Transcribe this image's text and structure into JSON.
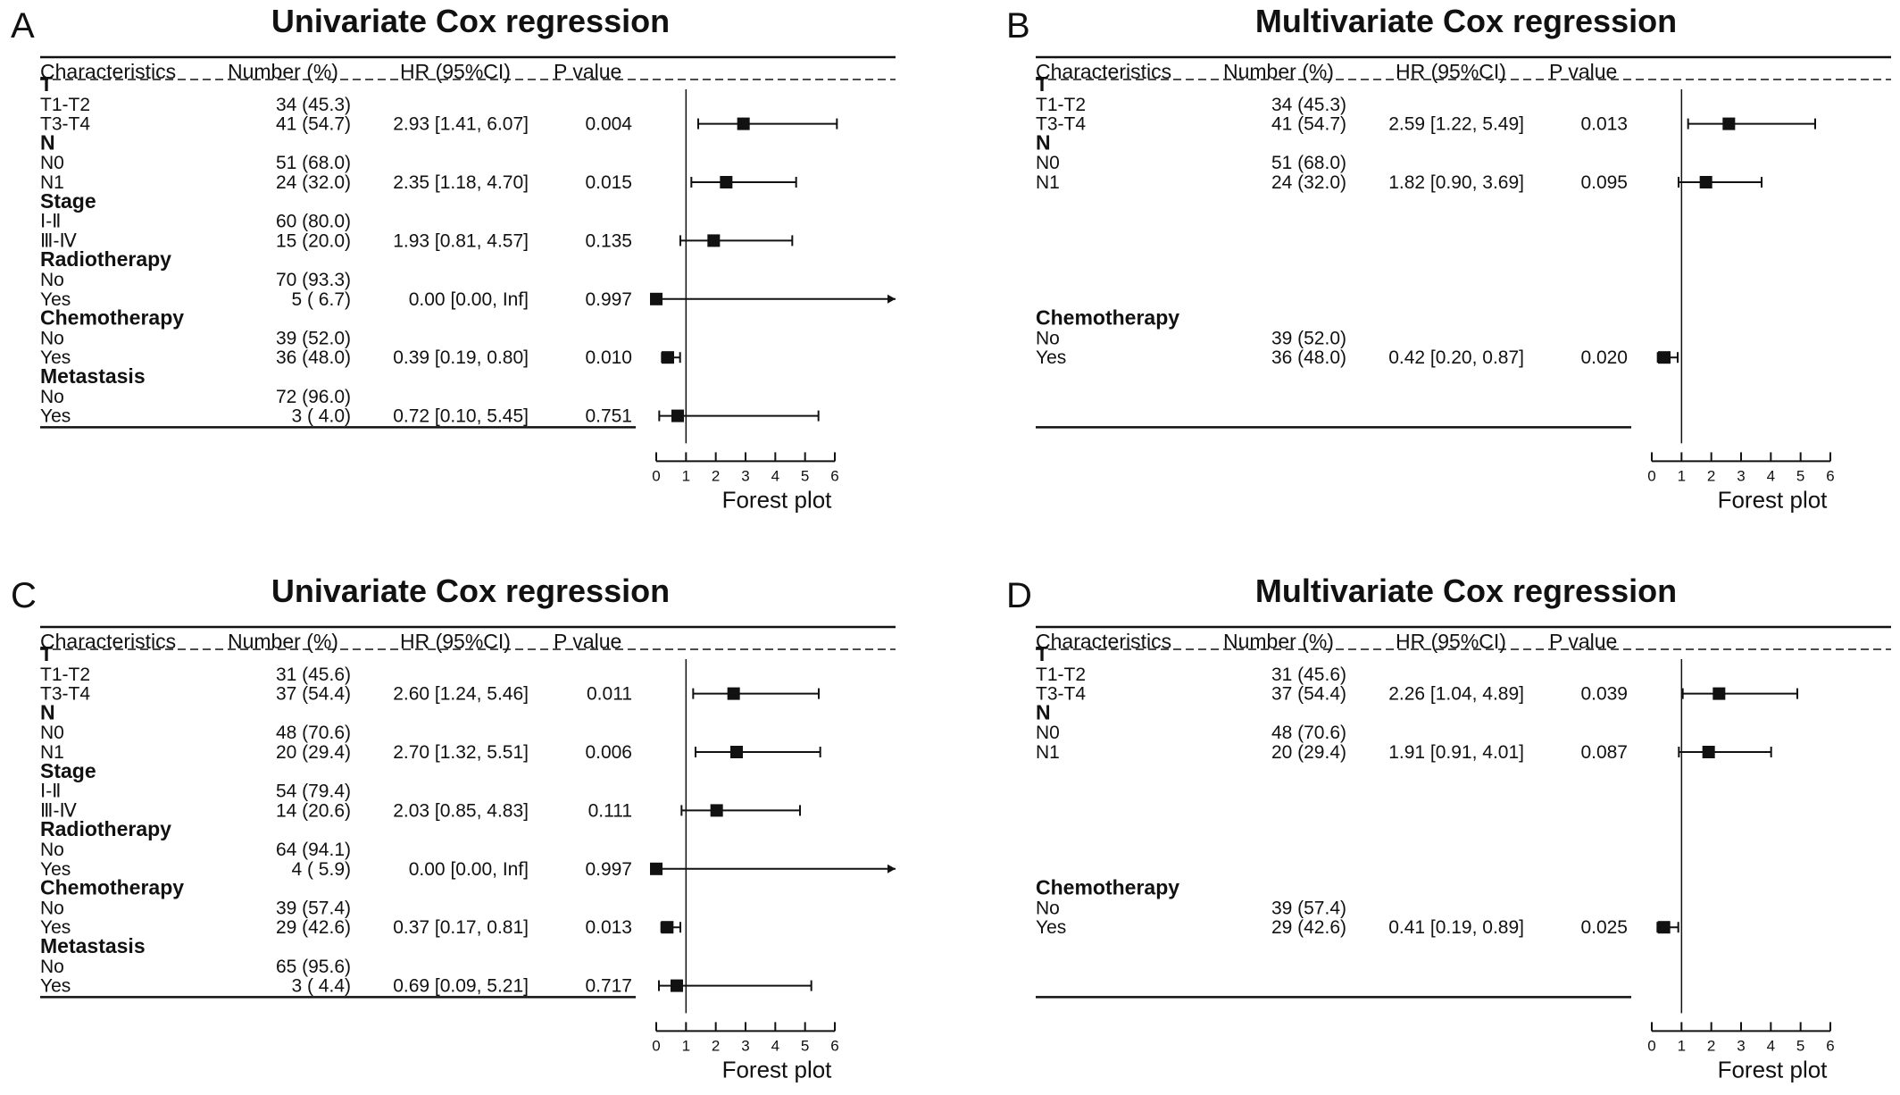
{
  "panels": [
    {
      "letter": "A",
      "title": "Univariate Cox regression",
      "headers": [
        "Characteristics",
        "Number (%)",
        "HR (95%CI)",
        "P value"
      ],
      "xlabel": "Forest plot",
      "ticks": [
        0,
        1,
        2,
        3,
        4,
        5,
        6
      ],
      "rows": [
        {
          "type": "section",
          "label": "T"
        },
        {
          "type": "item",
          "label": "T1-T2",
          "number": "34 (45.3)"
        },
        {
          "type": "item",
          "label": "T3-T4",
          "number": "41 (54.7)",
          "hr_text": "2.93 [1.41, 6.07]",
          "p": "0.004",
          "hr": 2.93,
          "lo": 1.41,
          "hi": 6.07
        },
        {
          "type": "section",
          "label": "N"
        },
        {
          "type": "item",
          "label": "N0",
          "number": "51 (68.0)"
        },
        {
          "type": "item",
          "label": "N1",
          "number": "24 (32.0)",
          "hr_text": "2.35 [1.18, 4.70]",
          "p": "0.015",
          "hr": 2.35,
          "lo": 1.18,
          "hi": 4.7
        },
        {
          "type": "section",
          "label": "Stage"
        },
        {
          "type": "item",
          "label": "Ⅰ-Ⅱ",
          "number": "60 (80.0)"
        },
        {
          "type": "item",
          "label": "Ⅲ-Ⅳ",
          "number": "15 (20.0)",
          "hr_text": "1.93 [0.81, 4.57]",
          "p": "0.135",
          "hr": 1.93,
          "lo": 0.81,
          "hi": 4.57
        },
        {
          "type": "section",
          "label": "Radiotherapy"
        },
        {
          "type": "item",
          "label": "No",
          "number": "70 (93.3)"
        },
        {
          "type": "item",
          "label": "Yes",
          "number": "5 ( 6.7)",
          "hr_text": "0.00 [0.00, Inf]",
          "p": "0.997",
          "hr": 0.0,
          "lo": 0.0,
          "hi": "Inf"
        },
        {
          "type": "section",
          "label": "Chemotherapy"
        },
        {
          "type": "item",
          "label": "No",
          "number": "39 (52.0)"
        },
        {
          "type": "item",
          "label": "Yes",
          "number": "36 (48.0)",
          "hr_text": "0.39 [0.19, 0.80]",
          "p": "0.010",
          "hr": 0.39,
          "lo": 0.19,
          "hi": 0.8
        },
        {
          "type": "section",
          "label": "Metastasis"
        },
        {
          "type": "item",
          "label": "No",
          "number": "72 (96.0)"
        },
        {
          "type": "item",
          "label": "Yes",
          "number": "3 ( 4.0)",
          "hr_text": "0.72 [0.10, 5.45]",
          "p": "0.751",
          "hr": 0.72,
          "lo": 0.1,
          "hi": 5.45
        }
      ]
    },
    {
      "letter": "B",
      "title": "Multivariate Cox regression",
      "headers": [
        "Characteristics",
        "Number (%)",
        "HR (95%CI)",
        "P value"
      ],
      "xlabel": "Forest plot",
      "ticks": [
        0,
        1,
        2,
        3,
        4,
        5,
        6
      ],
      "rows": [
        {
          "type": "section",
          "label": "T"
        },
        {
          "type": "item",
          "label": "T1-T2",
          "number": "34 (45.3)"
        },
        {
          "type": "item",
          "label": "T3-T4",
          "number": "41 (54.7)",
          "hr_text": "2.59 [1.22, 5.49]",
          "p": "0.013",
          "hr": 2.59,
          "lo": 1.22,
          "hi": 5.49
        },
        {
          "type": "section",
          "label": "N"
        },
        {
          "type": "item",
          "label": "N0",
          "number": "51 (68.0)"
        },
        {
          "type": "item",
          "label": "N1",
          "number": "24 (32.0)",
          "hr_text": "1.82 [0.90, 3.69]",
          "p": "0.095",
          "hr": 1.82,
          "lo": 0.9,
          "hi": 3.69
        },
        {
          "type": "blank"
        },
        {
          "type": "blank"
        },
        {
          "type": "blank"
        },
        {
          "type": "blank"
        },
        {
          "type": "blank"
        },
        {
          "type": "blank"
        },
        {
          "type": "section",
          "label": "Chemotherapy"
        },
        {
          "type": "item",
          "label": "No",
          "number": "39 (52.0)"
        },
        {
          "type": "item",
          "label": "Yes",
          "number": "36 (48.0)",
          "hr_text": "0.42 [0.20, 0.87]",
          "p": "0.020",
          "hr": 0.42,
          "lo": 0.2,
          "hi": 0.87
        },
        {
          "type": "blank"
        },
        {
          "type": "blank"
        },
        {
          "type": "blank"
        }
      ]
    },
    {
      "letter": "C",
      "title": "Univariate Cox regression",
      "headers": [
        "Characteristics",
        "Number (%)",
        "HR (95%CI)",
        "P value"
      ],
      "xlabel": "Forest plot",
      "ticks": [
        0,
        1,
        2,
        3,
        4,
        5,
        6
      ],
      "rows": [
        {
          "type": "section",
          "label": "T"
        },
        {
          "type": "item",
          "label": "T1-T2",
          "number": "31 (45.6)"
        },
        {
          "type": "item",
          "label": "T3-T4",
          "number": "37 (54.4)",
          "hr_text": "2.60 [1.24, 5.46]",
          "p": "0.011",
          "hr": 2.6,
          "lo": 1.24,
          "hi": 5.46
        },
        {
          "type": "section",
          "label": "N"
        },
        {
          "type": "item",
          "label": "N0",
          "number": "48 (70.6)"
        },
        {
          "type": "item",
          "label": "N1",
          "number": "20 (29.4)",
          "hr_text": "2.70 [1.32, 5.51]",
          "p": "0.006",
          "hr": 2.7,
          "lo": 1.32,
          "hi": 5.51
        },
        {
          "type": "section",
          "label": "Stage"
        },
        {
          "type": "item",
          "label": "Ⅰ-Ⅱ",
          "number": "54 (79.4)"
        },
        {
          "type": "item",
          "label": "Ⅲ-Ⅳ",
          "number": "14 (20.6)",
          "hr_text": "2.03 [0.85, 4.83]",
          "p": "0.111",
          "hr": 2.03,
          "lo": 0.85,
          "hi": 4.83
        },
        {
          "type": "section",
          "label": "Radiotherapy"
        },
        {
          "type": "item",
          "label": "No",
          "number": "64 (94.1)"
        },
        {
          "type": "item",
          "label": "Yes",
          "number": "4 ( 5.9)",
          "hr_text": "0.00 [0.00, Inf]",
          "p": "0.997",
          "hr": 0.0,
          "lo": 0.0,
          "hi": "Inf"
        },
        {
          "type": "section",
          "label": "Chemotherapy"
        },
        {
          "type": "item",
          "label": "No",
          "number": "39 (57.4)"
        },
        {
          "type": "item",
          "label": "Yes",
          "number": "29 (42.6)",
          "hr_text": "0.37 [0.17, 0.81]",
          "p": "0.013",
          "hr": 0.37,
          "lo": 0.17,
          "hi": 0.81
        },
        {
          "type": "section",
          "label": "Metastasis"
        },
        {
          "type": "item",
          "label": "No",
          "number": "65 (95.6)"
        },
        {
          "type": "item",
          "label": "Yes",
          "number": "3 ( 4.4)",
          "hr_text": "0.69 [0.09, 5.21]",
          "p": "0.717",
          "hr": 0.69,
          "lo": 0.09,
          "hi": 5.21
        }
      ]
    },
    {
      "letter": "D",
      "title": "Multivariate Cox regression",
      "headers": [
        "Characteristics",
        "Number (%)",
        "HR (95%CI)",
        "P value"
      ],
      "xlabel": "Forest plot",
      "ticks": [
        0,
        1,
        2,
        3,
        4,
        5,
        6
      ],
      "rows": [
        {
          "type": "section",
          "label": "T"
        },
        {
          "type": "item",
          "label": "T1-T2",
          "number": "31 (45.6)"
        },
        {
          "type": "item",
          "label": "T3-T4",
          "number": "37 (54.4)",
          "hr_text": "2.26 [1.04, 4.89]",
          "p": "0.039",
          "hr": 2.26,
          "lo": 1.04,
          "hi": 4.89
        },
        {
          "type": "section",
          "label": "N"
        },
        {
          "type": "item",
          "label": "N0",
          "number": "48 (70.6)"
        },
        {
          "type": "item",
          "label": "N1",
          "number": "20 (29.4)",
          "hr_text": "1.91 [0.91, 4.01]",
          "p": "0.087",
          "hr": 1.91,
          "lo": 0.91,
          "hi": 4.01
        },
        {
          "type": "blank"
        },
        {
          "type": "blank"
        },
        {
          "type": "blank"
        },
        {
          "type": "blank"
        },
        {
          "type": "blank"
        },
        {
          "type": "blank"
        },
        {
          "type": "section",
          "label": "Chemotherapy"
        },
        {
          "type": "item",
          "label": "No",
          "number": "39 (57.4)"
        },
        {
          "type": "item",
          "label": "Yes",
          "number": "29 (42.6)",
          "hr_text": "0.41 [0.19, 0.89]",
          "p": "0.025",
          "hr": 0.41,
          "lo": 0.19,
          "hi": 0.89
        },
        {
          "type": "blank"
        },
        {
          "type": "blank"
        },
        {
          "type": "blank"
        }
      ]
    }
  ],
  "chart_data": [
    {
      "type": "scatter",
      "panel": "A",
      "title": "Univariate Cox regression",
      "xlabel": "Forest plot",
      "xlim": [
        0,
        6
      ],
      "reference_line": 1,
      "series": [
        {
          "name": "HR (95%CI)",
          "categories": [
            "T3-T4",
            "N1",
            "Ⅲ-Ⅳ",
            "Radiotherapy Yes",
            "Chemotherapy Yes",
            "Metastasis Yes"
          ],
          "values": [
            2.93,
            2.35,
            1.93,
            0.0,
            0.39,
            0.72
          ],
          "lower": [
            1.41,
            1.18,
            0.81,
            0.0,
            0.19,
            0.1
          ],
          "upper": [
            6.07,
            4.7,
            4.57,
            "Inf",
            0.8,
            5.45
          ]
        }
      ]
    },
    {
      "type": "scatter",
      "panel": "B",
      "title": "Multivariate Cox regression",
      "xlabel": "Forest plot",
      "xlim": [
        0,
        6
      ],
      "reference_line": 1,
      "series": [
        {
          "name": "HR (95%CI)",
          "categories": [
            "T3-T4",
            "N1",
            "Chemotherapy Yes"
          ],
          "values": [
            2.59,
            1.82,
            0.42
          ],
          "lower": [
            1.22,
            0.9,
            0.2
          ],
          "upper": [
            5.49,
            3.69,
            0.87
          ]
        }
      ]
    },
    {
      "type": "scatter",
      "panel": "C",
      "title": "Univariate Cox regression",
      "xlabel": "Forest plot",
      "xlim": [
        0,
        6
      ],
      "reference_line": 1,
      "series": [
        {
          "name": "HR (95%CI)",
          "categories": [
            "T3-T4",
            "N1",
            "Ⅲ-Ⅳ",
            "Radiotherapy Yes",
            "Chemotherapy Yes",
            "Metastasis Yes"
          ],
          "values": [
            2.6,
            2.7,
            2.03,
            0.0,
            0.37,
            0.69
          ],
          "lower": [
            1.24,
            1.32,
            0.85,
            0.0,
            0.17,
            0.09
          ],
          "upper": [
            5.46,
            5.51,
            4.83,
            "Inf",
            0.81,
            5.21
          ]
        }
      ]
    },
    {
      "type": "scatter",
      "panel": "D",
      "title": "Multivariate Cox regression",
      "xlabel": "Forest plot",
      "xlim": [
        0,
        6
      ],
      "reference_line": 1,
      "series": [
        {
          "name": "HR (95%CI)",
          "categories": [
            "T3-T4",
            "N1",
            "Chemotherapy Yes"
          ],
          "values": [
            2.26,
            1.91,
            0.41
          ],
          "lower": [
            1.04,
            0.91,
            0.19
          ],
          "upper": [
            4.89,
            4.01,
            0.89
          ]
        }
      ]
    }
  ]
}
